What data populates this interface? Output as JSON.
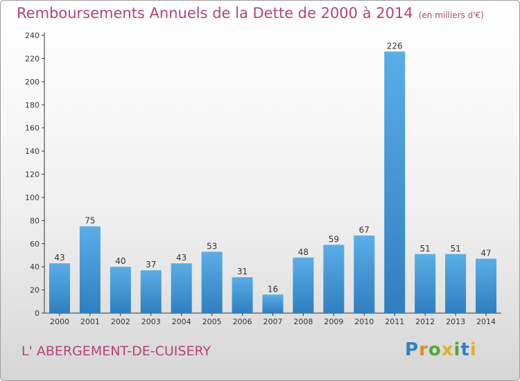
{
  "title": "Remboursements Annuels de la Dette de 2000 à 2014",
  "subtitle": "(en milliers d'€)",
  "commune": "L' ABERGEMENT-DE-CUISERY",
  "logo": {
    "text": "Proxiti",
    "letters": [
      "P",
      "r",
      "o",
      "x",
      "i",
      "t",
      "i"
    ],
    "colors": [
      "#2f7fc6",
      "#e8862a",
      "#4fa83d",
      "#e0b12a",
      "#4fa83d",
      "#2f7fc6",
      "#e0b12a"
    ]
  },
  "colors": {
    "accent": "#b0457a",
    "bar_top": "#5aaee6",
    "bar_bottom": "#2f7fc0"
  },
  "chart_data": {
    "type": "bar",
    "categories": [
      "2000",
      "2001",
      "2002",
      "2003",
      "2004",
      "2005",
      "2006",
      "2007",
      "2008",
      "2009",
      "2010",
      "2011",
      "2012",
      "2013",
      "2014"
    ],
    "values": [
      43,
      75,
      40,
      37,
      43,
      53,
      31,
      16,
      48,
      59,
      67,
      226,
      51,
      51,
      47
    ],
    "title": "Remboursements Annuels de la Dette de 2000 à 2014",
    "ylim": [
      0,
      240
    ],
    "yticks": [
      0,
      20,
      40,
      60,
      80,
      100,
      120,
      140,
      160,
      180,
      200,
      220,
      240
    ],
    "grid": false,
    "data_labels": true
  }
}
